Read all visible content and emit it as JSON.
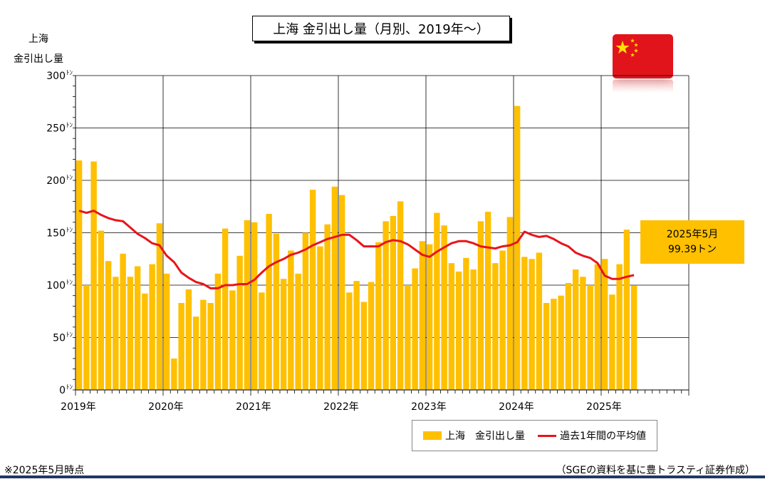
{
  "chart_data": {
    "type": "bar",
    "title": "上海 金引出し量（月別、2019年～）",
    "ylabel_lines": [
      "上海",
      "金引出し量"
    ],
    "ylim": [
      0,
      300
    ],
    "yticks": [
      0,
      50,
      100,
      150,
      200,
      250,
      300
    ],
    "ytick_unit": "ﾄﾝ",
    "year_labels": [
      "2019年",
      "2020年",
      "2021年",
      "2022年",
      "2023年",
      "2024年",
      "2025年"
    ],
    "series": [
      {
        "name": "上海　金引出し量",
        "kind": "bar",
        "color": "#ffc000",
        "values": [
          219,
          100,
          218,
          152,
          123,
          108,
          130,
          108,
          118,
          92,
          120,
          159,
          111,
          30,
          83,
          96,
          70,
          86,
          83,
          111,
          154,
          95,
          128,
          162,
          160,
          93,
          168,
          149,
          106,
          133,
          111,
          150,
          191,
          137,
          158,
          194,
          186,
          93,
          104,
          84,
          103,
          141,
          161,
          166,
          180,
          100,
          116,
          142,
          139,
          169,
          157,
          121,
          113,
          126,
          115,
          161,
          170,
          121,
          133,
          165,
          271,
          127,
          125,
          131,
          83,
          87,
          90,
          102,
          115,
          108,
          100,
          120,
          125,
          91,
          120,
          153,
          99.39
        ]
      },
      {
        "name": "過去1年間の平均値",
        "kind": "line",
        "color": "#e8141b",
        "values": [
          171,
          169,
          171,
          167,
          164,
          162,
          161,
          155,
          149,
          145,
          140,
          138,
          128,
          122,
          112,
          107,
          103,
          101,
          97,
          97,
          100,
          100,
          101,
          101,
          105,
          112,
          118,
          122,
          125,
          129,
          131,
          134,
          138,
          141,
          144,
          146,
          148,
          148,
          143,
          137,
          137,
          137,
          141,
          143,
          142,
          139,
          134,
          129,
          127,
          132,
          136,
          140,
          142,
          142,
          140,
          137,
          136,
          135,
          137,
          138,
          141,
          151,
          148,
          146,
          147,
          144,
          140,
          137,
          131,
          128,
          126,
          121,
          109,
          106,
          106,
          108,
          109.5
        ]
      }
    ],
    "grid": true,
    "legend_position": "bottom-right",
    "callout": {
      "line1": "2025年5月",
      "line2": "99.39トン"
    }
  },
  "notes": {
    "left": "※2025年5月時点",
    "right": "（SGEの資料を基に豊トラスティ証券作成）"
  },
  "colors": {
    "bar": "#ffc000",
    "line": "#e8141b",
    "flag": "#e2141b",
    "rule": "#1f3864"
  },
  "flag_icon": "china-flag-icon"
}
